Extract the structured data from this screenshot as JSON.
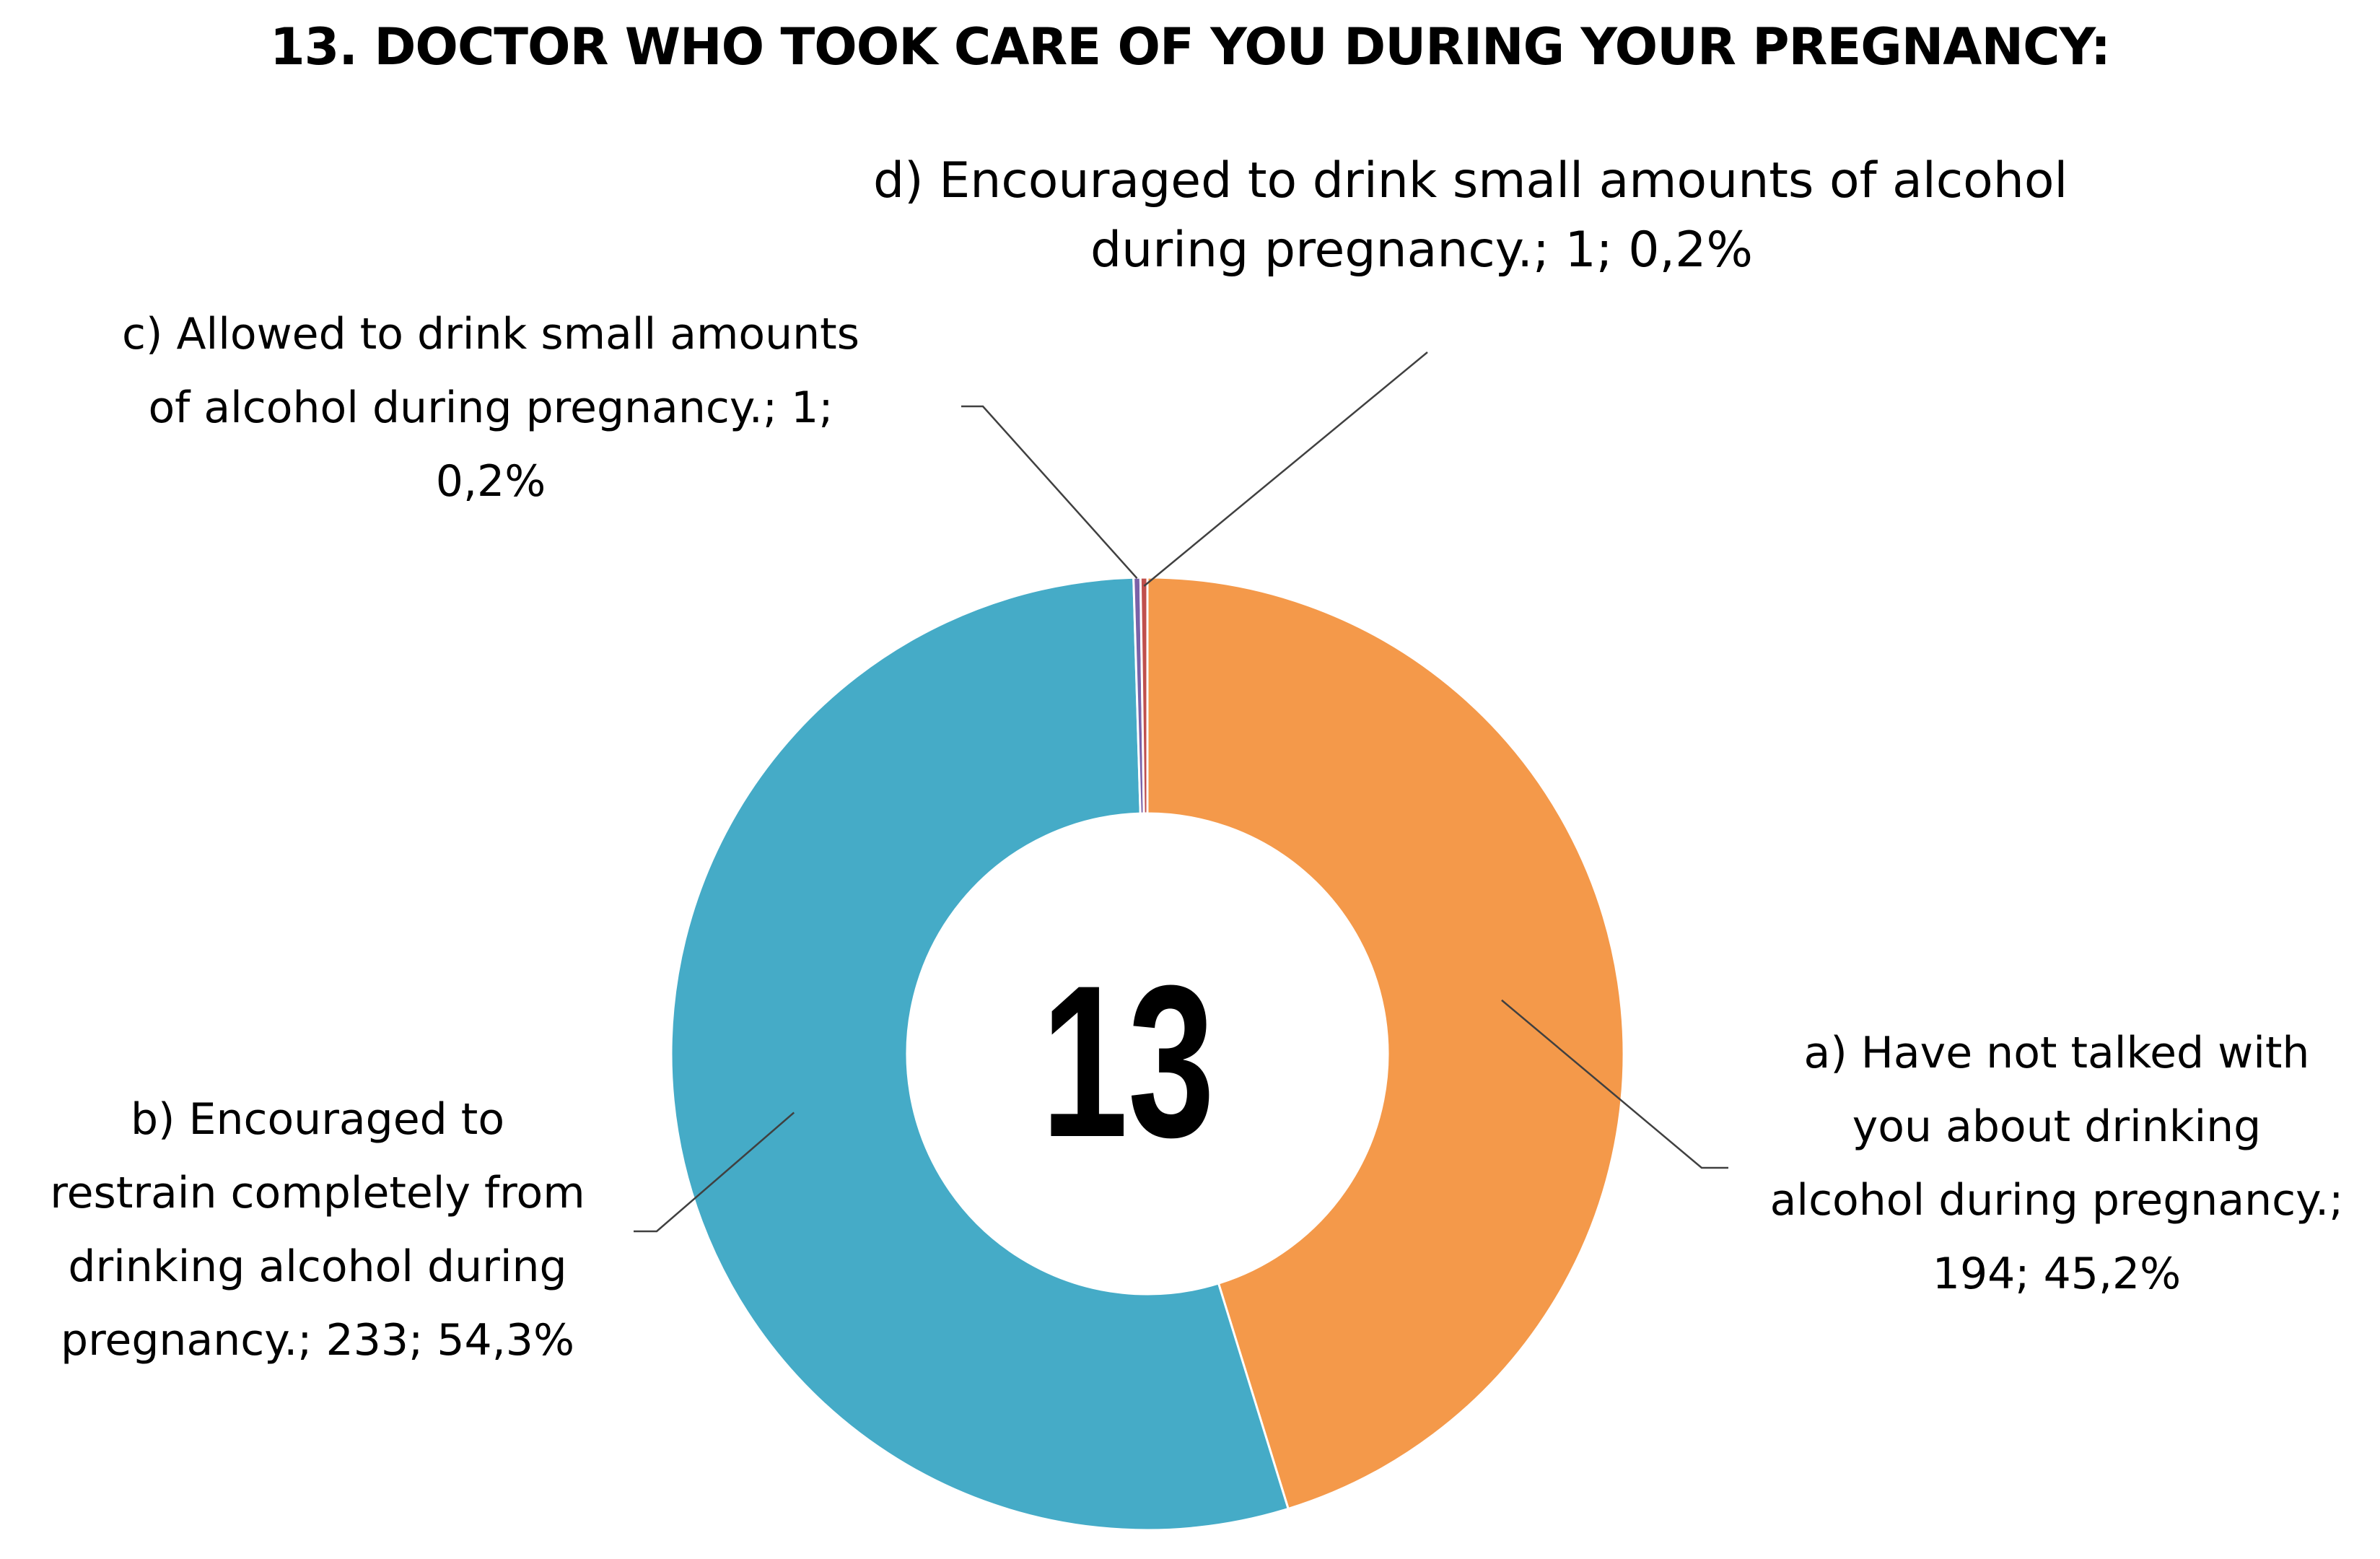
{
  "chart_data": {
    "type": "pie",
    "variant": "donut",
    "title": "13. DOCTOR WHO TOOK CARE OF YOU DURING YOUR PREGNANCY:",
    "center_label": "13",
    "slices": [
      {
        "id": "a",
        "label_lines": [
          "a) Have not talked with",
          "you about drinking",
          "alcohol during pregnancy.;",
          "194; 45,2%"
        ],
        "value": 194,
        "percent": 45.2,
        "color": "#F4994A"
      },
      {
        "id": "b",
        "label_lines": [
          "b) Encouraged to",
          "restrain completely from",
          "drinking alcohol during",
          "pregnancy.; 233; 54,3%"
        ],
        "value": 233,
        "percent": 54.3,
        "color": "#45ABC7"
      },
      {
        "id": "c",
        "label_lines": [
          "c) Allowed to drink small amounts",
          "of alcohol during pregnancy.; 1;",
          "0,2%"
        ],
        "value": 1,
        "percent": 0.2,
        "color": "#7B62A8"
      },
      {
        "id": "d",
        "label_lines": [
          "d) Encouraged to drink small amounts of alcohol",
          "during pregnancy.; 1; 0,2%"
        ],
        "value": 1,
        "percent": 0.2,
        "color": "#C0504D"
      }
    ],
    "slice_order": [
      "a",
      "b",
      "c",
      "d"
    ],
    "start_angle_deg": 0,
    "direction": "clockwise",
    "legend": "none"
  }
}
